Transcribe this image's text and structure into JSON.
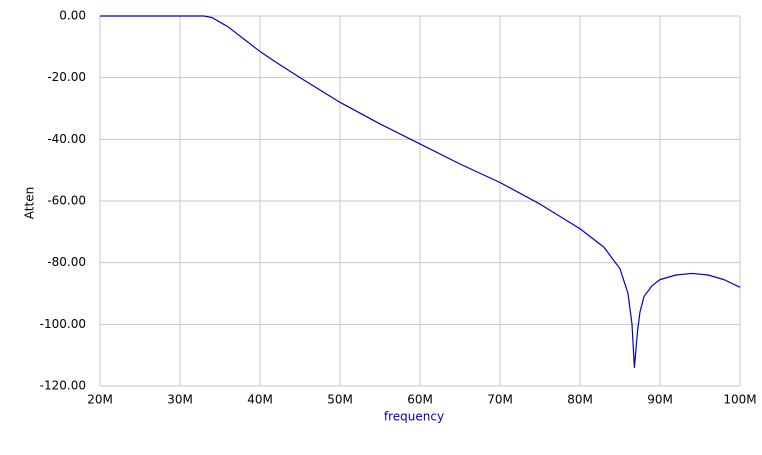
{
  "chart_data": {
    "type": "line",
    "x_label": "frequency",
    "y_label": "Atten",
    "x": [
      20000000,
      30000000,
      33000000,
      34000000,
      35000000,
      36000000,
      38000000,
      40000000,
      42000000,
      45000000,
      50000000,
      55000000,
      60000000,
      65000000,
      70000000,
      75000000,
      80000000,
      83000000,
      85000000,
      86000000,
      86500000,
      86800000,
      87200000,
      87500000,
      88000000,
      89000000,
      90000000,
      92000000,
      94000000,
      96000000,
      98000000,
      100000000
    ],
    "values": [
      0,
      0,
      0,
      -0.5,
      -2,
      -3.5,
      -7.5,
      -11.5,
      -15,
      -20,
      -28,
      -35,
      -41.5,
      -48,
      -54,
      -61,
      -69,
      -75,
      -82,
      -90,
      -100,
      -114,
      -102,
      -96,
      -91,
      -87.5,
      -85.5,
      -84,
      -83.5,
      -84,
      -85.5,
      -88
    ],
    "color": "#0000cc",
    "xlim": [
      20000000,
      100000000
    ],
    "xticks": [
      {
        "value": 20000000,
        "label": "20M"
      },
      {
        "value": 30000000,
        "label": "30M"
      },
      {
        "value": 40000000,
        "label": "40M"
      },
      {
        "value": 50000000,
        "label": "50M"
      },
      {
        "value": 60000000,
        "label": "60M"
      },
      {
        "value": 70000000,
        "label": "70M"
      },
      {
        "value": 80000000,
        "label": "80M"
      },
      {
        "value": 90000000,
        "label": "90M"
      },
      {
        "value": 100000000,
        "label": "100M"
      }
    ],
    "ylim": [
      -120,
      0
    ],
    "yticks": [
      {
        "value": 0,
        "label": "0.00"
      },
      {
        "value": -20,
        "label": "-20.00"
      },
      {
        "value": -40,
        "label": "-40.00"
      },
      {
        "value": -60,
        "label": "-60.00"
      },
      {
        "value": -80,
        "label": "-80.00"
      },
      {
        "value": -100,
        "label": "-100.00"
      },
      {
        "value": -120,
        "label": "-120.00"
      }
    ],
    "grid": true
  }
}
